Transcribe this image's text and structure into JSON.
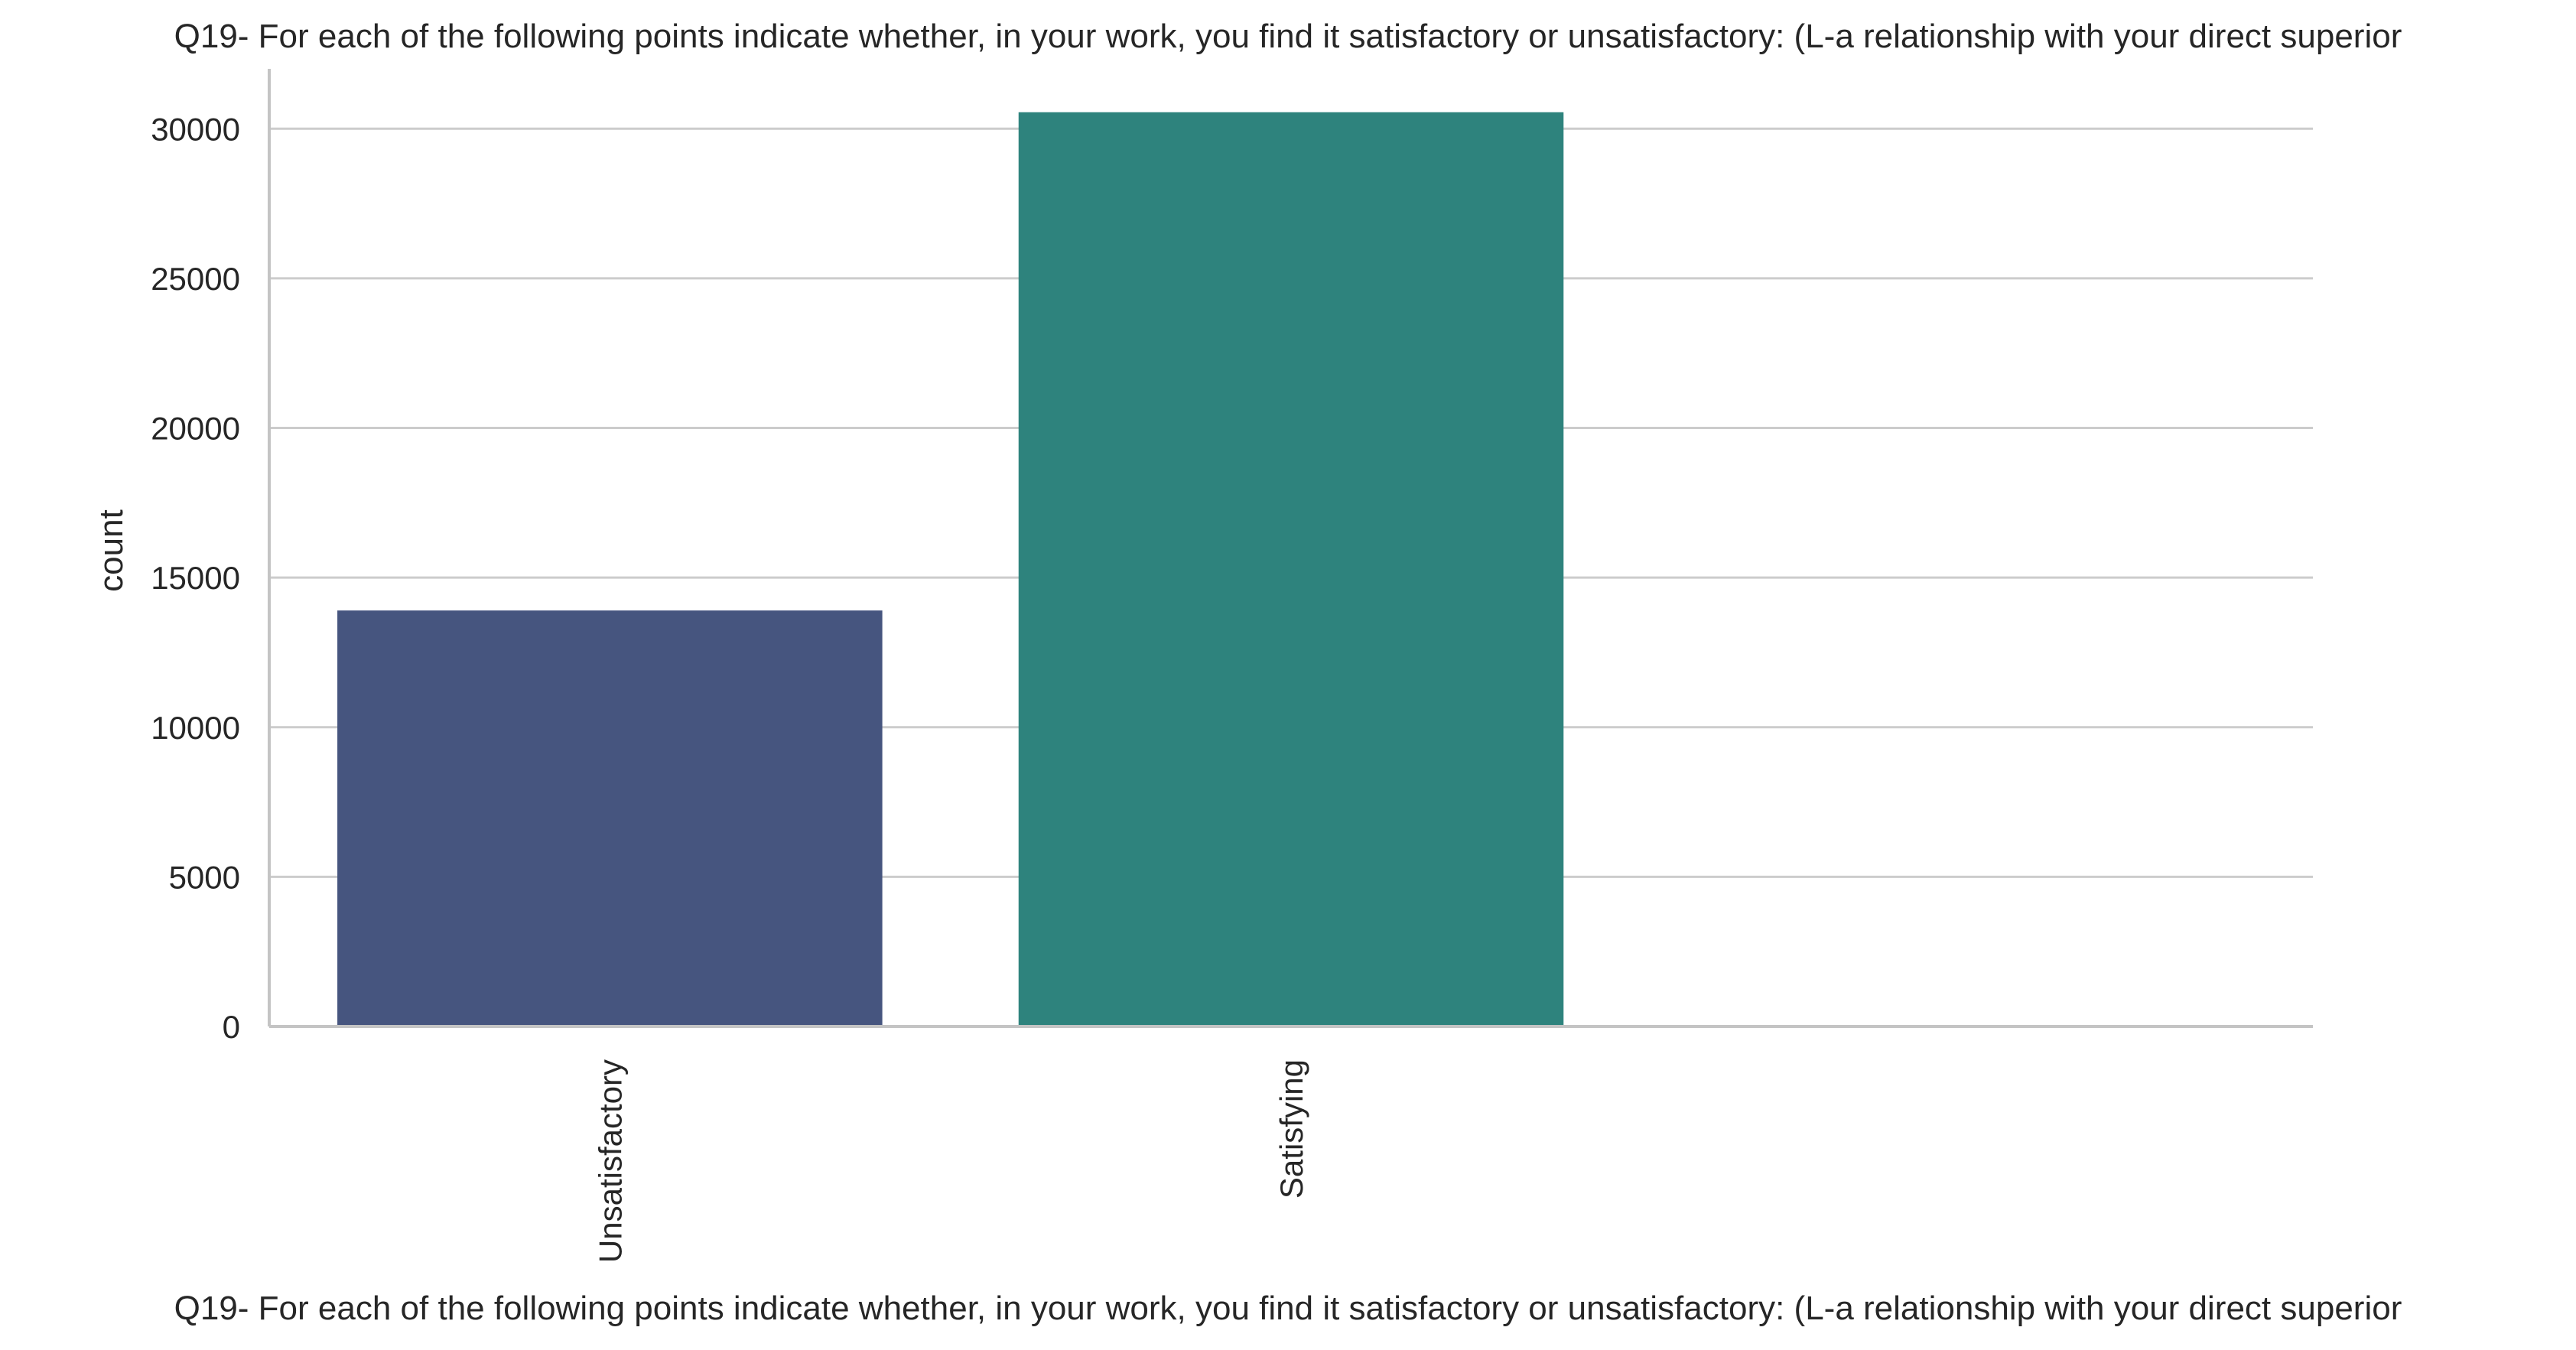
{
  "chart_data": {
    "type": "bar",
    "title": "Q19- For each of the following points indicate whether, in your work, you find it satisfactory or unsatisfactory: (L-a relationship with your direct superior",
    "xlabel": "Q19- For each of the following points indicate whether, in your work, you find it satisfactory or unsatisfactory: (L-a relationship with your direct superior",
    "ylabel": "count",
    "categories": [
      "Unsatisfactory",
      "Satisfying",
      ""
    ],
    "values": [
      13900,
      30550,
      null
    ],
    "ylim": [
      0,
      32000
    ],
    "yticks": [
      0,
      5000,
      10000,
      15000,
      20000,
      25000,
      30000
    ],
    "grid": "horizontal",
    "legend": "none",
    "colors": [
      "#46557f",
      "#2e837d"
    ],
    "gridColor": "#cccccc",
    "axisColor": "#c4c4c4"
  }
}
